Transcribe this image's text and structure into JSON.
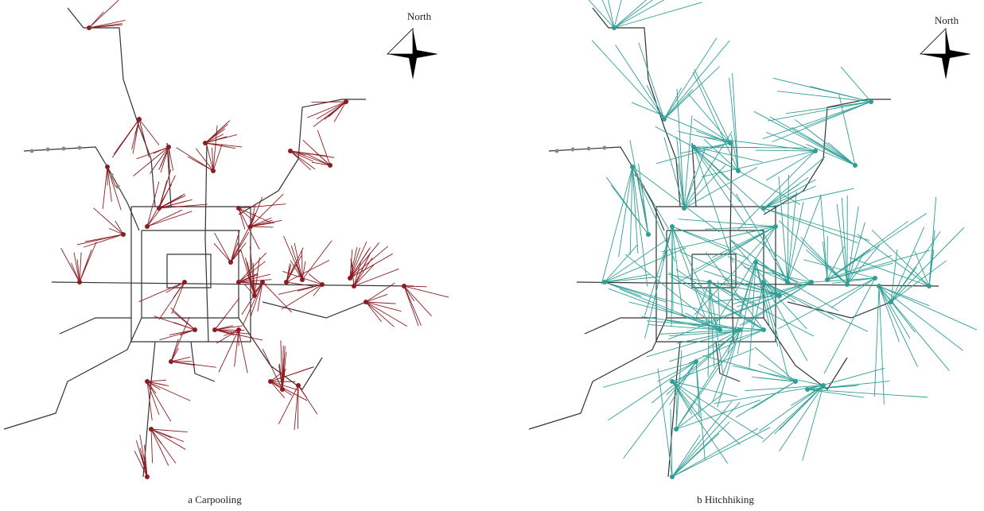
{
  "panels": [
    {
      "caption": "a Carpooling",
      "north": "North"
    },
    {
      "caption": "b Hitchhiking",
      "north": "North"
    }
  ]
}
